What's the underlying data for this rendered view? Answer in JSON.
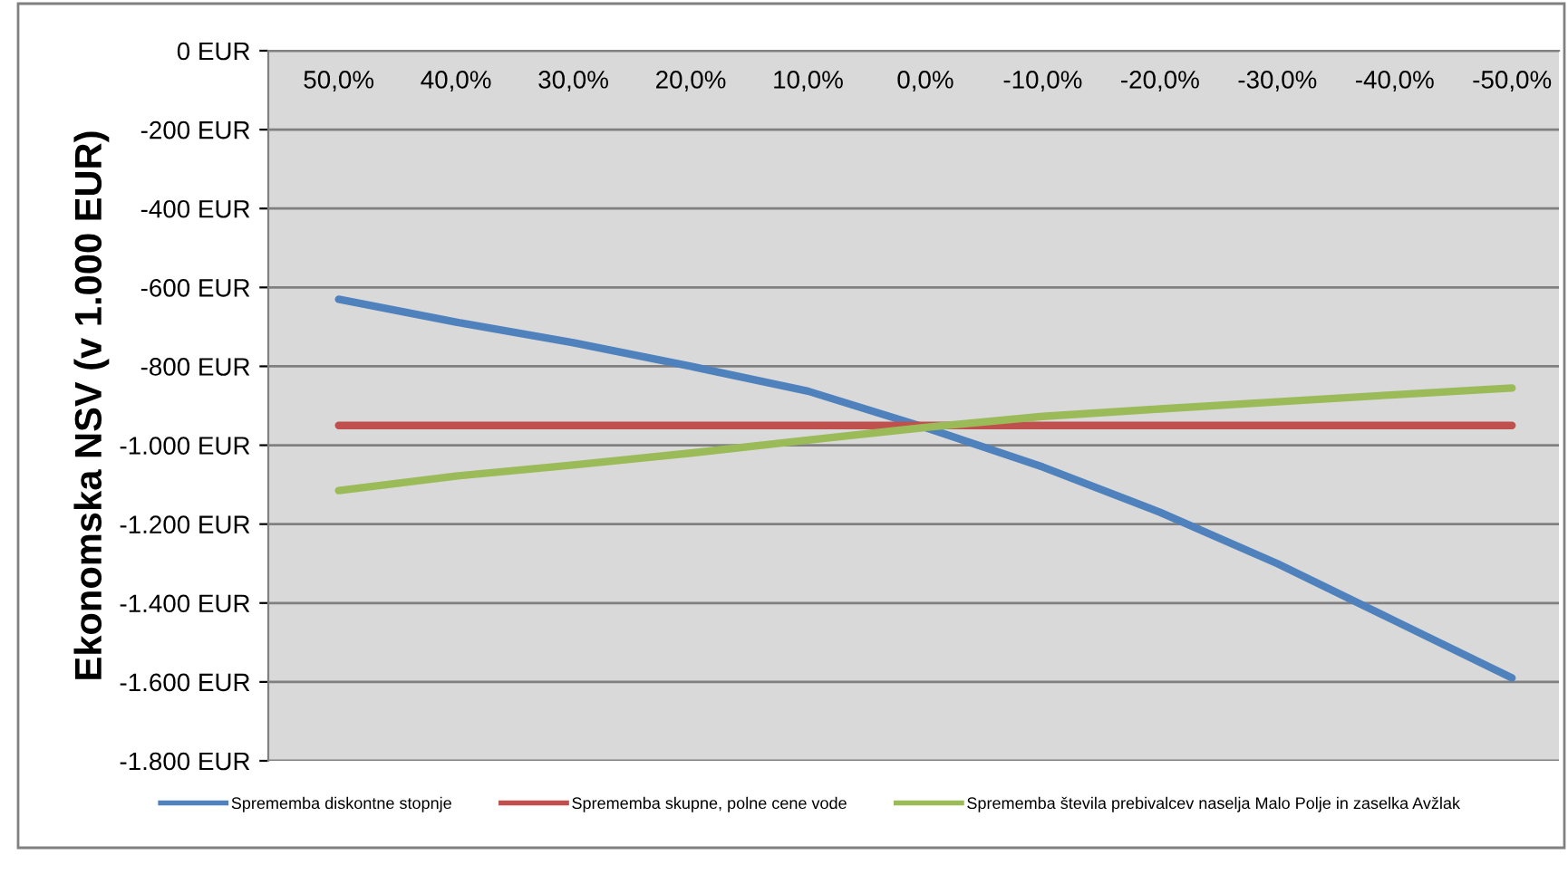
{
  "chart_data": {
    "type": "line",
    "ylabel": "Ekonomska NSV (v 1.000 EUR)",
    "categories": [
      "50,0%",
      "40,0%",
      "30,0%",
      "20,0%",
      "10,0%",
      "0,0%",
      "-10,0%",
      "-20,0%",
      "-30,0%",
      "-40,0%",
      "-50,0%"
    ],
    "series": [
      {
        "name": "Sprememba diskontne stopnje",
        "color": "#4f81bd",
        "values": [
          -630,
          -688,
          -740,
          -800,
          -863,
          -955,
          -1055,
          -1170,
          -1300,
          -1445,
          -1590
        ]
      },
      {
        "name": "Sprememba skupne, polne cene vode",
        "color": "#c0504d",
        "values": [
          -950,
          -950,
          -950,
          -950,
          -950,
          -950,
          -950,
          -950,
          -950,
          -950,
          -950
        ]
      },
      {
        "name": "Sprememba števila prebivalcev naselja Malo Polje in zaselka Avžlak",
        "color": "#9bbb59",
        "values": [
          -1115,
          -1078,
          -1050,
          -1020,
          -987,
          -955,
          -927,
          -908,
          -890,
          -872,
          -855
        ]
      }
    ],
    "ylim": [
      -1800,
      0
    ],
    "yticks": [
      {
        "value": 0,
        "label": "0 EUR"
      },
      {
        "value": -200,
        "label": "-200 EUR"
      },
      {
        "value": -400,
        "label": "-400 EUR"
      },
      {
        "value": -600,
        "label": "-600 EUR"
      },
      {
        "value": -800,
        "label": "-800 EUR"
      },
      {
        "value": -1000,
        "label": "-1.000 EUR"
      },
      {
        "value": -1200,
        "label": "-1.200 EUR"
      },
      {
        "value": -1400,
        "label": "-1.400 EUR"
      },
      {
        "value": -1600,
        "label": "-1.600 EUR"
      },
      {
        "value": -1800,
        "label": "-1.800 EUR"
      }
    ],
    "grid": "y",
    "legend": "bottom",
    "marker": "none",
    "line_style": "solid"
  }
}
